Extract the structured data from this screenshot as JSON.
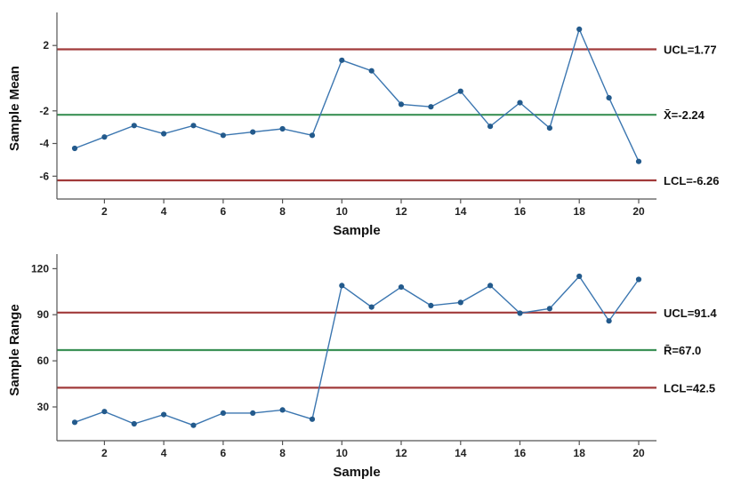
{
  "page": {
    "background": "#ffffff"
  },
  "colors": {
    "series_line": "#3B76B0",
    "marker": "#235A8C",
    "limit_line": "#A13A3A",
    "center_line": "#3C9156",
    "axis": "#555555",
    "text": "#1c1c1c"
  },
  "chart_data": [
    {
      "type": "line",
      "name": "xbar-chart",
      "title": "",
      "xlabel": "Sample",
      "ylabel": "Sample Mean",
      "x": [
        1,
        2,
        3,
        4,
        5,
        6,
        7,
        8,
        9,
        10,
        11,
        12,
        13,
        14,
        15,
        16,
        17,
        18,
        19,
        20
      ],
      "values": [
        -4.3,
        -3.6,
        -2.9,
        -3.4,
        -2.9,
        -3.5,
        -3.3,
        -3.1,
        -3.5,
        1.1,
        0.45,
        -1.6,
        -1.75,
        -0.8,
        -2.95,
        -1.5,
        -3.05,
        3.0,
        -1.2,
        -5.1
      ],
      "xlim": [
        0.4,
        20.6
      ],
      "ylim": [
        -7.4,
        3.7
      ],
      "xticks": [
        2,
        4,
        6,
        8,
        10,
        12,
        14,
        16,
        18,
        20
      ],
      "yticks": [
        2,
        -2,
        -4,
        -6
      ],
      "grid": false,
      "legend_position": "right",
      "control_lines": {
        "ucl": 1.77,
        "center": -2.24,
        "lcl": -6.26
      },
      "annotations": [
        {
          "text": "UCL=1.77",
          "value": 1.77
        },
        {
          "text": "X̄=-2.24",
          "value": -2.24
        },
        {
          "text": "LCL=-6.26",
          "value": -6.26
        }
      ]
    },
    {
      "type": "line",
      "name": "r-chart",
      "title": "",
      "xlabel": "Sample",
      "ylabel": "Sample Range",
      "x": [
        1,
        2,
        3,
        4,
        5,
        6,
        7,
        8,
        9,
        10,
        11,
        12,
        13,
        14,
        15,
        16,
        17,
        18,
        19,
        20
      ],
      "values": [
        20,
        27,
        19,
        25,
        18,
        26,
        26,
        28,
        22,
        109,
        95,
        108,
        96,
        98,
        109,
        91,
        94,
        115,
        86,
        113
      ],
      "xlim": [
        0.4,
        20.6
      ],
      "ylim": [
        8,
        126
      ],
      "xticks": [
        2,
        4,
        6,
        8,
        10,
        12,
        14,
        16,
        18,
        20
      ],
      "yticks": [
        30,
        60,
        90,
        120
      ],
      "grid": false,
      "legend_position": "right",
      "control_lines": {
        "ucl": 91.4,
        "center": 67.0,
        "lcl": 42.5
      },
      "annotations": [
        {
          "text": "UCL=91.4",
          "value": 91.4
        },
        {
          "text": "R̄=67.0",
          "value": 67.0
        },
        {
          "text": "LCL=42.5",
          "value": 42.5
        }
      ]
    }
  ]
}
